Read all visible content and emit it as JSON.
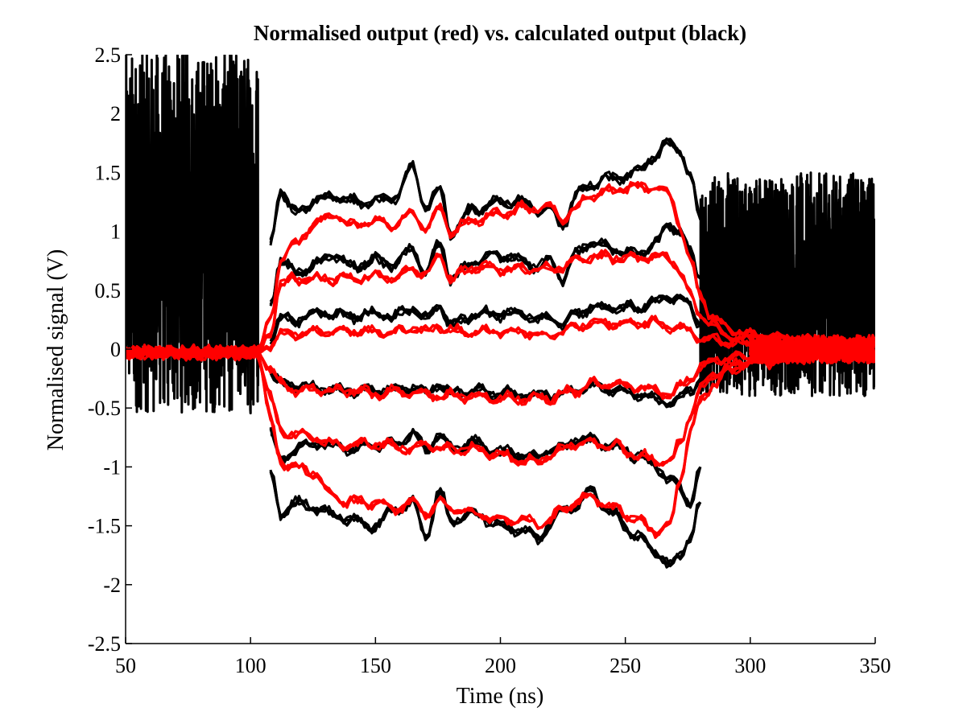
{
  "chart_data": {
    "type": "line",
    "title": "Normalised output (red) vs. calculated output (black)",
    "xlabel": "Time (ns)",
    "ylabel": "Normalised signal (V)",
    "xlim": [
      50,
      350
    ],
    "ylim": [
      -2.5,
      2.5
    ],
    "xticks": [
      50,
      100,
      150,
      200,
      250,
      300,
      350
    ],
    "yticks": [
      -2.5,
      -2,
      -1.5,
      -1,
      -0.5,
      0,
      0.5,
      1,
      1.5,
      2,
      2.5
    ],
    "xtick_labels": [
      "50",
      "100",
      "150",
      "200",
      "250",
      "300",
      "350"
    ],
    "ytick_labels": [
      "-2.5",
      "-2",
      "-1.5",
      "-1",
      "-0.5",
      "0",
      "0.5",
      "1",
      "1.5",
      "2",
      "2.5"
    ],
    "grid": false,
    "colors": {
      "normalised": "#ff0000",
      "calculated": "#000000"
    },
    "black_noise": {
      "early": {
        "x": [
          50,
          103
        ],
        "center": 1.0,
        "spread": 1.55,
        "low_clip": -0.65
      },
      "late": {
        "x": [
          280,
          350
        ],
        "center": 0.55,
        "spread": 0.95,
        "low_clip": -0.8
      }
    },
    "x_sample": [
      50,
      103,
      108,
      112,
      118,
      125,
      133,
      140,
      150,
      158,
      165,
      170,
      176,
      180,
      190,
      200,
      210,
      215,
      220,
      225,
      230,
      236,
      245,
      255,
      262,
      268,
      272,
      276,
      280,
      285,
      290,
      300,
      320,
      350
    ],
    "series": [
      {
        "color": "red",
        "values": [
          -0.03,
          -0.03,
          0.25,
          0.75,
          0.9,
          1.05,
          1.15,
          1.05,
          1.08,
          1.05,
          1.15,
          1.02,
          1.2,
          1.0,
          1.1,
          1.15,
          1.2,
          1.2,
          1.2,
          1.1,
          1.2,
          1.3,
          1.35,
          1.38,
          1.38,
          1.3,
          1.05,
          0.75,
          0.45,
          0.28,
          0.18,
          0.12,
          0.07,
          0.05
        ]
      },
      {
        "color": "red",
        "values": [
          -0.03,
          -0.03,
          0.15,
          0.55,
          0.6,
          0.6,
          0.6,
          0.6,
          0.62,
          0.6,
          0.7,
          0.62,
          0.8,
          0.6,
          0.7,
          0.68,
          0.68,
          0.68,
          0.68,
          0.7,
          0.75,
          0.78,
          0.78,
          0.78,
          0.78,
          0.78,
          0.65,
          0.45,
          0.3,
          0.2,
          0.12,
          0.08,
          0.04,
          0.02
        ]
      },
      {
        "color": "red",
        "values": [
          -0.03,
          -0.03,
          0.05,
          0.12,
          0.13,
          0.15,
          0.15,
          0.15,
          0.15,
          0.15,
          0.18,
          0.15,
          0.2,
          0.15,
          0.15,
          0.15,
          0.15,
          0.13,
          0.13,
          0.15,
          0.2,
          0.22,
          0.22,
          0.22,
          0.22,
          0.2,
          0.18,
          0.15,
          0.1,
          0.08,
          0.06,
          0.04,
          0.02,
          0.01
        ]
      },
      {
        "color": "red",
        "values": [
          -0.03,
          -0.03,
          -0.15,
          -0.3,
          -0.35,
          -0.35,
          -0.35,
          -0.35,
          -0.38,
          -0.36,
          -0.38,
          -0.38,
          -0.4,
          -0.4,
          -0.4,
          -0.42,
          -0.42,
          -0.42,
          -0.42,
          -0.38,
          -0.35,
          -0.3,
          -0.3,
          -0.32,
          -0.35,
          -0.38,
          -0.33,
          -0.25,
          -0.15,
          -0.1,
          -0.08,
          -0.06,
          -0.04,
          -0.03
        ]
      },
      {
        "color": "red",
        "values": [
          -0.03,
          -0.03,
          -0.4,
          -0.7,
          -0.72,
          -0.75,
          -0.8,
          -0.82,
          -0.8,
          -0.82,
          -0.85,
          -0.8,
          -0.85,
          -0.85,
          -0.85,
          -0.9,
          -0.95,
          -0.95,
          -0.9,
          -0.85,
          -0.8,
          -0.8,
          -0.82,
          -0.9,
          -0.95,
          -0.95,
          -0.8,
          -0.55,
          -0.35,
          -0.22,
          -0.16,
          -0.1,
          -0.06,
          -0.04
        ]
      },
      {
        "color": "red",
        "values": [
          -0.03,
          -0.03,
          -0.6,
          -0.95,
          -1.0,
          -1.05,
          -1.25,
          -1.3,
          -1.3,
          -1.35,
          -1.3,
          -1.4,
          -1.3,
          -1.35,
          -1.4,
          -1.45,
          -1.45,
          -1.5,
          -1.45,
          -1.35,
          -1.3,
          -1.25,
          -1.35,
          -1.45,
          -1.55,
          -1.5,
          -1.1,
          -0.7,
          -0.45,
          -0.3,
          -0.2,
          -0.12,
          -0.07,
          -0.05
        ]
      },
      {
        "color": "black",
        "values": [
          null,
          null,
          0.9,
          1.35,
          1.15,
          1.25,
          1.3,
          1.25,
          1.25,
          1.3,
          1.55,
          1.2,
          1.35,
          1.0,
          1.2,
          1.25,
          1.25,
          1.15,
          1.2,
          1.05,
          1.3,
          1.4,
          1.45,
          1.5,
          1.65,
          1.75,
          1.7,
          1.45,
          1.1,
          null,
          null,
          null,
          null,
          null
        ]
      },
      {
        "color": "black",
        "values": [
          null,
          null,
          0.4,
          0.75,
          0.65,
          0.7,
          0.8,
          0.7,
          0.75,
          0.72,
          0.85,
          0.65,
          0.9,
          0.6,
          0.75,
          0.8,
          0.75,
          0.7,
          0.75,
          0.6,
          0.8,
          0.9,
          0.85,
          0.8,
          0.9,
          1.05,
          1.0,
          0.8,
          0.6,
          null,
          null,
          null,
          null,
          null
        ]
      },
      {
        "color": "black",
        "values": [
          null,
          null,
          0.1,
          0.25,
          0.25,
          0.3,
          0.3,
          0.28,
          0.3,
          0.28,
          0.35,
          0.25,
          0.38,
          0.2,
          0.3,
          0.3,
          0.3,
          0.25,
          0.28,
          0.2,
          0.3,
          0.35,
          0.35,
          0.35,
          0.4,
          0.45,
          0.42,
          0.35,
          0.2,
          null,
          null,
          null,
          null,
          null
        ]
      },
      {
        "color": "black",
        "values": [
          null,
          null,
          -0.2,
          -0.3,
          -0.3,
          -0.33,
          -0.35,
          -0.35,
          -0.35,
          -0.35,
          -0.32,
          -0.37,
          -0.3,
          -0.38,
          -0.35,
          -0.38,
          -0.38,
          -0.4,
          -0.38,
          -0.38,
          -0.35,
          -0.32,
          -0.35,
          -0.38,
          -0.42,
          -0.45,
          -0.42,
          -0.35,
          -0.25,
          null,
          null,
          null,
          null,
          null
        ]
      },
      {
        "color": "black",
        "values": [
          null,
          null,
          -0.7,
          -0.95,
          -0.85,
          -0.8,
          -0.82,
          -0.85,
          -0.82,
          -0.8,
          -0.72,
          -0.85,
          -0.72,
          -0.85,
          -0.8,
          -0.88,
          -0.9,
          -0.92,
          -0.85,
          -0.85,
          -0.75,
          -0.78,
          -0.82,
          -0.9,
          -1.0,
          -1.1,
          -1.2,
          -1.3,
          -1.0,
          null,
          null,
          null,
          null,
          null
        ]
      },
      {
        "color": "black",
        "values": [
          null,
          null,
          -1.05,
          -1.4,
          -1.3,
          -1.35,
          -1.4,
          -1.45,
          -1.5,
          -1.35,
          -1.3,
          -1.6,
          -1.2,
          -1.45,
          -1.4,
          -1.5,
          -1.55,
          -1.6,
          -1.5,
          -1.35,
          -1.35,
          -1.2,
          -1.4,
          -1.6,
          -1.7,
          -1.85,
          -1.75,
          -1.6,
          -1.3,
          null,
          null,
          null,
          null,
          null
        ]
      }
    ]
  }
}
